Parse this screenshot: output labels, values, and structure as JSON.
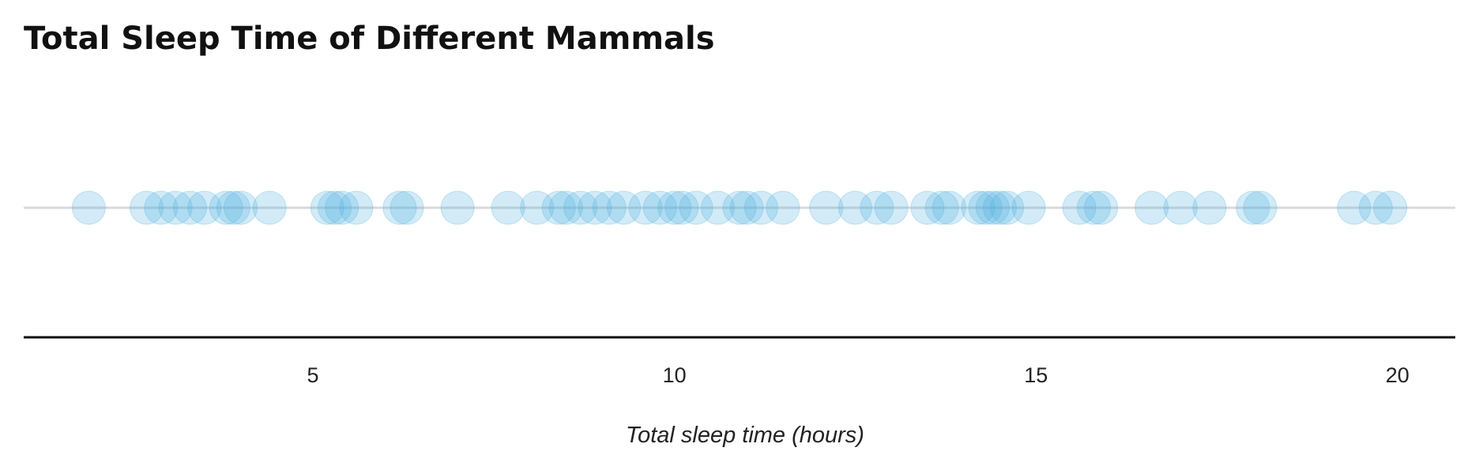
{
  "chart_data": {
    "type": "scatter",
    "title": "Total Sleep Time of Different Mammals",
    "xlabel": "Total sleep time (hours)",
    "ylabel": "",
    "xlim": [
      1.0,
      20.8
    ],
    "xticks": [
      5,
      10,
      15,
      20
    ],
    "tick_labels": [
      "5",
      "10",
      "15",
      "20"
    ],
    "grid": false,
    "legend": "none",
    "point_color": "#4aaee0",
    "baseline_color": "#d9d9d9",
    "axis_color": "#111111",
    "values": [
      1.9,
      2.7,
      2.9,
      3.1,
      3.3,
      3.5,
      3.8,
      3.9,
      4.0,
      4.4,
      5.2,
      5.3,
      5.4,
      5.6,
      6.2,
      6.3,
      7.0,
      7.7,
      8.1,
      8.4,
      8.5,
      8.7,
      8.9,
      9.1,
      9.3,
      9.6,
      9.8,
      10.0,
      10.1,
      10.3,
      10.6,
      10.9,
      11.0,
      11.2,
      11.5,
      12.1,
      12.5,
      12.8,
      13.0,
      13.5,
      13.7,
      13.8,
      14.2,
      14.3,
      14.4,
      14.5,
      14.6,
      14.9,
      15.6,
      15.8,
      15.9,
      16.6,
      17.0,
      17.4,
      18.0,
      18.1,
      19.4,
      19.7,
      19.9
    ]
  }
}
